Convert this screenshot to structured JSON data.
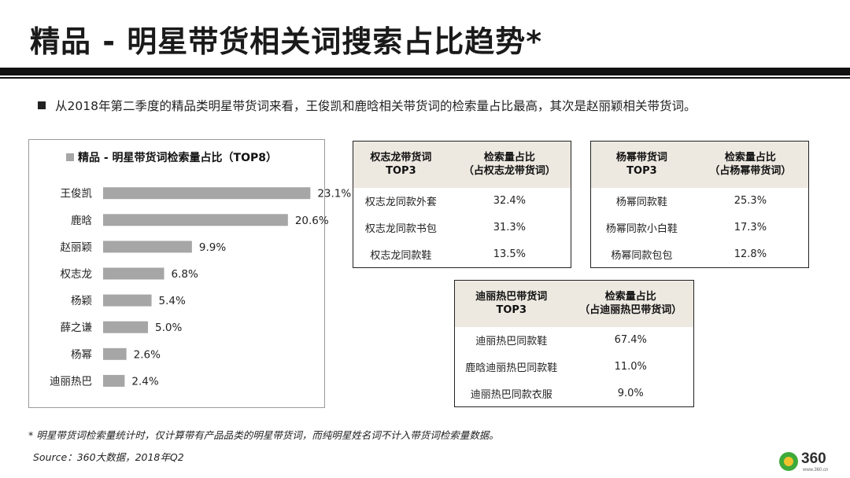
{
  "page": {
    "title": "精品 - 明星带货相关词搜索占比趋势*",
    "bullet": "从2018年第二季度的精品类明星带货词来看，王俊凯和鹿晗相关带货词的检索量占比最高，其次是赵丽颖相关带货词。",
    "footnote": "* 明星带货词检索量统计时，仅计算带有产品品类的明星带货词，而纯明星姓名词不计入带货词检索量数据。",
    "source": "Source：360大数据，2018年Q2"
  },
  "chart_data": {
    "type": "bar",
    "orientation": "horizontal",
    "title": "精品 - 明星带货词检索量占比（TOP8）",
    "categories": [
      "王俊凯",
      "鹿晗",
      "赵丽颖",
      "权志龙",
      "杨颖",
      "薛之谦",
      "杨幂",
      "迪丽热巴"
    ],
    "values": [
      23.1,
      20.6,
      9.9,
      6.8,
      5.4,
      5.0,
      2.6,
      2.4
    ],
    "value_labels": [
      "23.1%",
      "20.6%",
      "9.9%",
      "6.8%",
      "5.4%",
      "5.0%",
      "2.6%",
      "2.4%"
    ],
    "xlim": [
      0,
      25
    ],
    "bar_color": "#a6a6a6",
    "grid": false,
    "legend": "top"
  },
  "tables": [
    {
      "id": "tbl-1",
      "headers": [
        "权志龙带货词\nTOP3",
        "检索量占比\n（占权志龙带货词）"
      ],
      "rows": [
        [
          "权志龙同款外套",
          "32.4%"
        ],
        [
          "权志龙同款书包",
          "31.3%"
        ],
        [
          "权志龙同款鞋",
          "13.5%"
        ]
      ]
    },
    {
      "id": "tbl-2",
      "headers": [
        "杨幂带货词\nTOP3",
        "检索量占比\n（占杨幂带货词）"
      ],
      "rows": [
        [
          "杨幂同款鞋",
          "25.3%"
        ],
        [
          "杨幂同款小白鞋",
          "17.3%"
        ],
        [
          "杨幂同款包包",
          "12.8%"
        ]
      ]
    },
    {
      "id": "tbl-3",
      "headers": [
        "迪丽热巴带货词\nTOP3",
        "检索量占比\n（占迪丽热巴带货词）"
      ],
      "rows": [
        [
          "迪丽热巴同款鞋",
          "67.4%"
        ],
        [
          "鹿晗迪丽热巴同款鞋",
          "11.0%"
        ],
        [
          "迪丽热巴同款衣服",
          "9.0%"
        ]
      ]
    }
  ],
  "logo": {
    "text": "360",
    "sub": "www.360.cn",
    "colors": {
      "ring": "#3eaa3a",
      "core": "#f2c12e"
    }
  }
}
